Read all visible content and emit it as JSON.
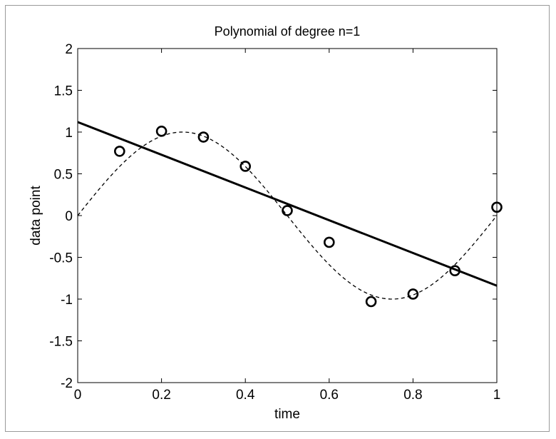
{
  "chart_data": {
    "type": "line",
    "title": "Polynomial of degree n=1",
    "xlabel": "time",
    "ylabel": "data point",
    "xlim": [
      0,
      1
    ],
    "ylim": [
      -2,
      2
    ],
    "x_ticks": [
      0,
      0.2,
      0.4,
      0.6,
      0.8,
      1
    ],
    "x_tick_labels": [
      "0",
      "0.2",
      "0.4",
      "0.6",
      "0.8",
      "1"
    ],
    "y_ticks": [
      2,
      1.5,
      1,
      0.5,
      0,
      -0.5,
      -1,
      -1.5,
      -2
    ],
    "y_tick_labels": [
      "2",
      "1.5",
      "1",
      "0.5",
      "0",
      "-0.5",
      "-1",
      "-1.5",
      "-2"
    ],
    "grid": false,
    "colors": {
      "line": "#000000",
      "axes": "#000000",
      "frame": "#9a9a9a"
    },
    "series": [
      {
        "style": "markers-circle",
        "x": [
          0.1,
          0.2,
          0.3,
          0.4,
          0.5,
          0.6,
          0.7,
          0.8,
          0.9,
          1.0
        ],
        "y": [
          0.77,
          1.01,
          0.94,
          0.59,
          0.06,
          -0.32,
          -1.03,
          -0.94,
          -0.66,
          0.1
        ]
      },
      {
        "style": "dashed",
        "function": "sin(2*pi*x)",
        "x_range": [
          0,
          1
        ]
      },
      {
        "style": "solid",
        "x": [
          0,
          1
        ],
        "y": [
          1.12,
          -0.84
        ]
      }
    ]
  }
}
